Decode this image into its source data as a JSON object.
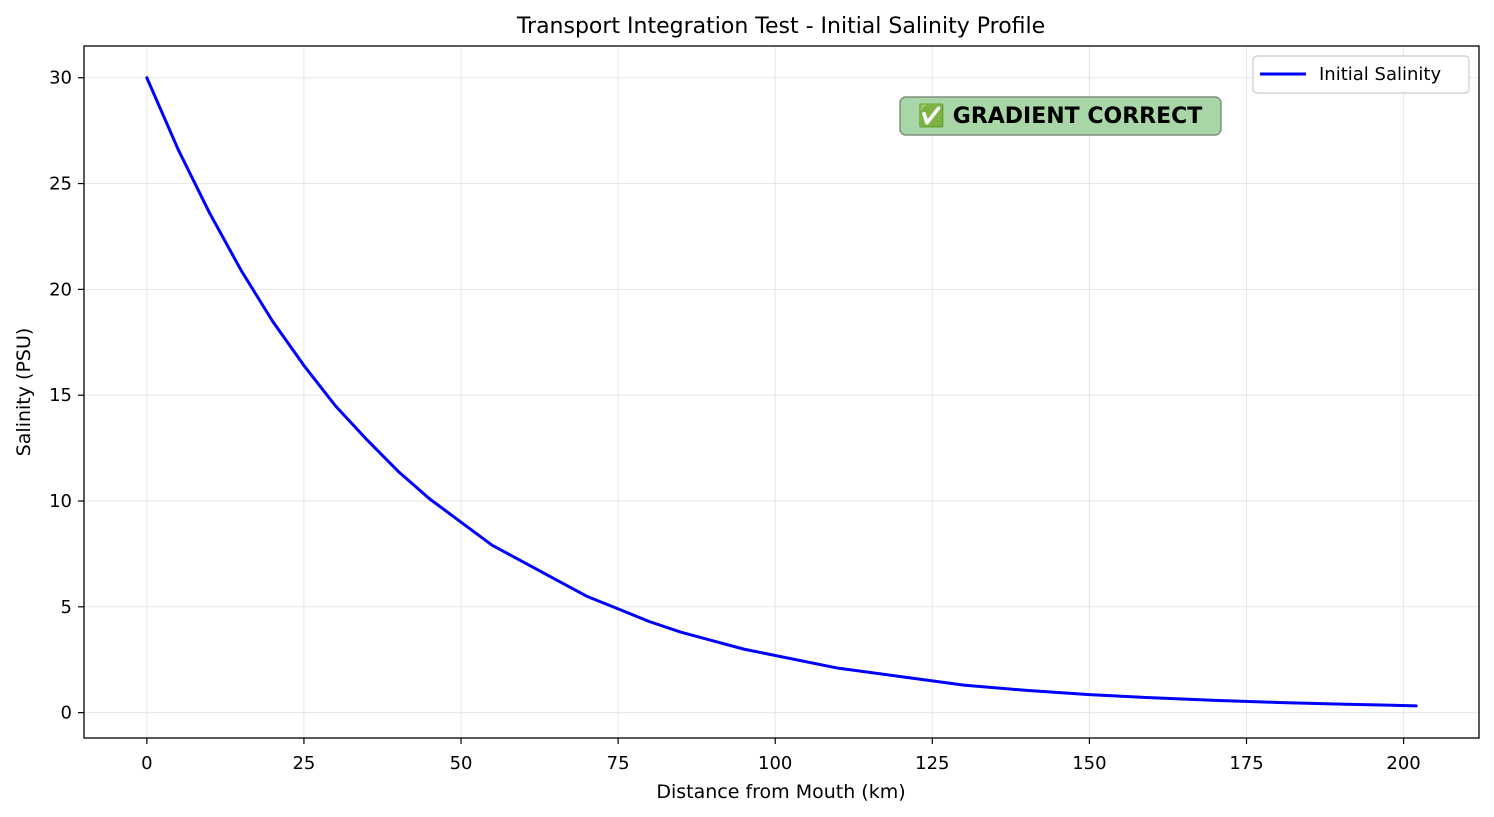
{
  "chart_data": {
    "type": "line",
    "title": "Transport Integration Test - Initial Salinity Profile",
    "xlabel": "Distance from Mouth (km)",
    "ylabel": "Salinity (PSU)",
    "xlim": [
      -10,
      212
    ],
    "ylim": [
      -1.2,
      31.5
    ],
    "xticks": [
      0,
      25,
      50,
      75,
      100,
      125,
      150,
      175,
      200
    ],
    "yticks": [
      0,
      5,
      10,
      15,
      20,
      25,
      30
    ],
    "grid": true,
    "legend_position": "upper right",
    "series": [
      {
        "name": "Initial Salinity",
        "color": "#0000ff",
        "x": [
          0,
          5,
          10,
          15,
          20,
          25,
          30,
          35,
          40,
          45,
          50,
          55,
          60,
          65,
          70,
          75,
          80,
          85,
          90,
          95,
          100,
          110,
          120,
          130,
          140,
          150,
          160,
          170,
          180,
          190,
          202
        ],
        "y": [
          30.0,
          26.6,
          23.6,
          20.9,
          18.5,
          16.4,
          14.5,
          12.9,
          11.4,
          10.1,
          9.0,
          7.9,
          7.1,
          6.3,
          5.5,
          4.9,
          4.3,
          3.8,
          3.4,
          3.0,
          2.7,
          2.1,
          1.7,
          1.3,
          1.05,
          0.85,
          0.7,
          0.58,
          0.48,
          0.4,
          0.32
        ]
      }
    ],
    "annotation": {
      "text": "✅ GRADIENT CORRECT",
      "background": "#a9d6a6",
      "border": "#7f8f7f"
    }
  }
}
